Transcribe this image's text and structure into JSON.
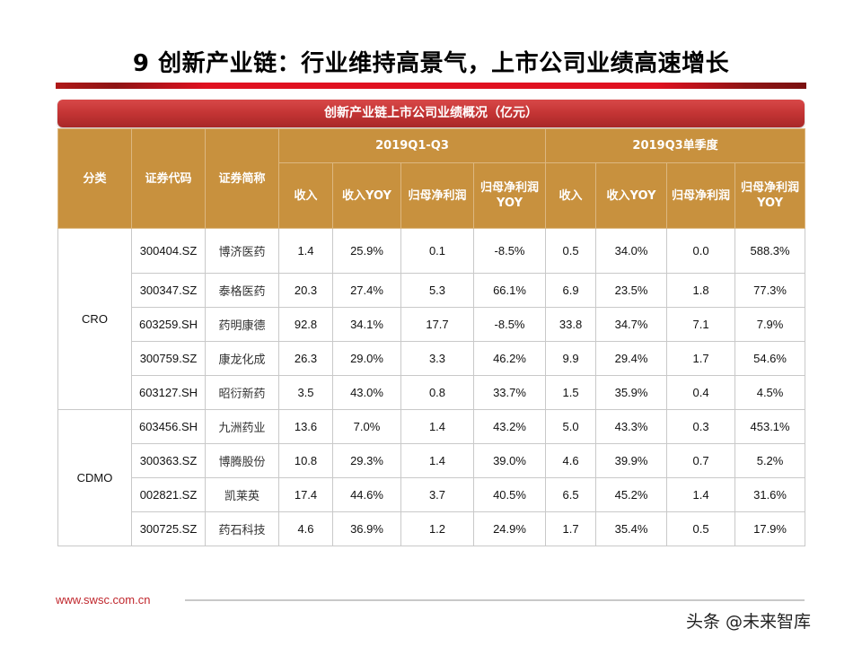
{
  "slide": {
    "title": "9 创新产业链：行业维持高景气，上市公司业绩高速增长",
    "banner": "创新产业链上市公司业绩概况（亿元）",
    "colors": {
      "accent_red": "#e01020",
      "banner_red": "#c33434",
      "header_gold": "#c8913e",
      "footer_url": "#c0272d"
    }
  },
  "table": {
    "headers": {
      "category": "分类",
      "code": "证券代码",
      "name": "证券简称",
      "group1": "2019Q1-Q3",
      "group2": "2019Q3单季度",
      "sub": [
        "收入",
        "收入YOY",
        "归母净利润",
        "归母净利润YOY",
        "收入",
        "收入YOY",
        "归母净利润",
        "归母净利润YOY"
      ]
    },
    "groups": [
      {
        "category": "CRO",
        "rows": [
          {
            "code": "300404.SZ",
            "name": "博济医药",
            "v": [
              "1.4",
              "25.9%",
              "0.1",
              "-8.5%",
              "0.5",
              "34.0%",
              "0.0",
              "588.3%"
            ]
          },
          {
            "code": "300347.SZ",
            "name": "泰格医药",
            "v": [
              "20.3",
              "27.4%",
              "5.3",
              "66.1%",
              "6.9",
              "23.5%",
              "1.8",
              "77.3%"
            ]
          },
          {
            "code": "603259.SH",
            "name": "药明康德",
            "v": [
              "92.8",
              "34.1%",
              "17.7",
              "-8.5%",
              "33.8",
              "34.7%",
              "7.1",
              "7.9%"
            ]
          },
          {
            "code": "300759.SZ",
            "name": "康龙化成",
            "v": [
              "26.3",
              "29.0%",
              "3.3",
              "46.2%",
              "9.9",
              "29.4%",
              "1.7",
              "54.6%"
            ]
          },
          {
            "code": "603127.SH",
            "name": "昭衍新药",
            "v": [
              "3.5",
              "43.0%",
              "0.8",
              "33.7%",
              "1.5",
              "35.9%",
              "0.4",
              "4.5%"
            ]
          }
        ]
      },
      {
        "category": "CDMO",
        "rows": [
          {
            "code": "603456.SH",
            "name": "九洲药业",
            "v": [
              "13.6",
              "7.0%",
              "1.4",
              "43.2%",
              "5.0",
              "43.3%",
              "0.3",
              "453.1%"
            ]
          },
          {
            "code": "300363.SZ",
            "name": "博腾股份",
            "v": [
              "10.8",
              "29.3%",
              "1.4",
              "39.0%",
              "4.6",
              "39.9%",
              "0.7",
              "5.2%"
            ]
          },
          {
            "code": "002821.SZ",
            "name": "凯莱英",
            "v": [
              "17.4",
              "44.6%",
              "3.7",
              "40.5%",
              "6.5",
              "45.2%",
              "1.4",
              "31.6%"
            ]
          },
          {
            "code": "300725.SZ",
            "name": "药石科技",
            "v": [
              "4.6",
              "36.9%",
              "1.2",
              "24.9%",
              "1.7",
              "35.4%",
              "0.5",
              "17.9%"
            ]
          }
        ]
      }
    ]
  },
  "footer": {
    "url": "www.swsc.com.cn",
    "watermark": "头条 @未来智库"
  }
}
